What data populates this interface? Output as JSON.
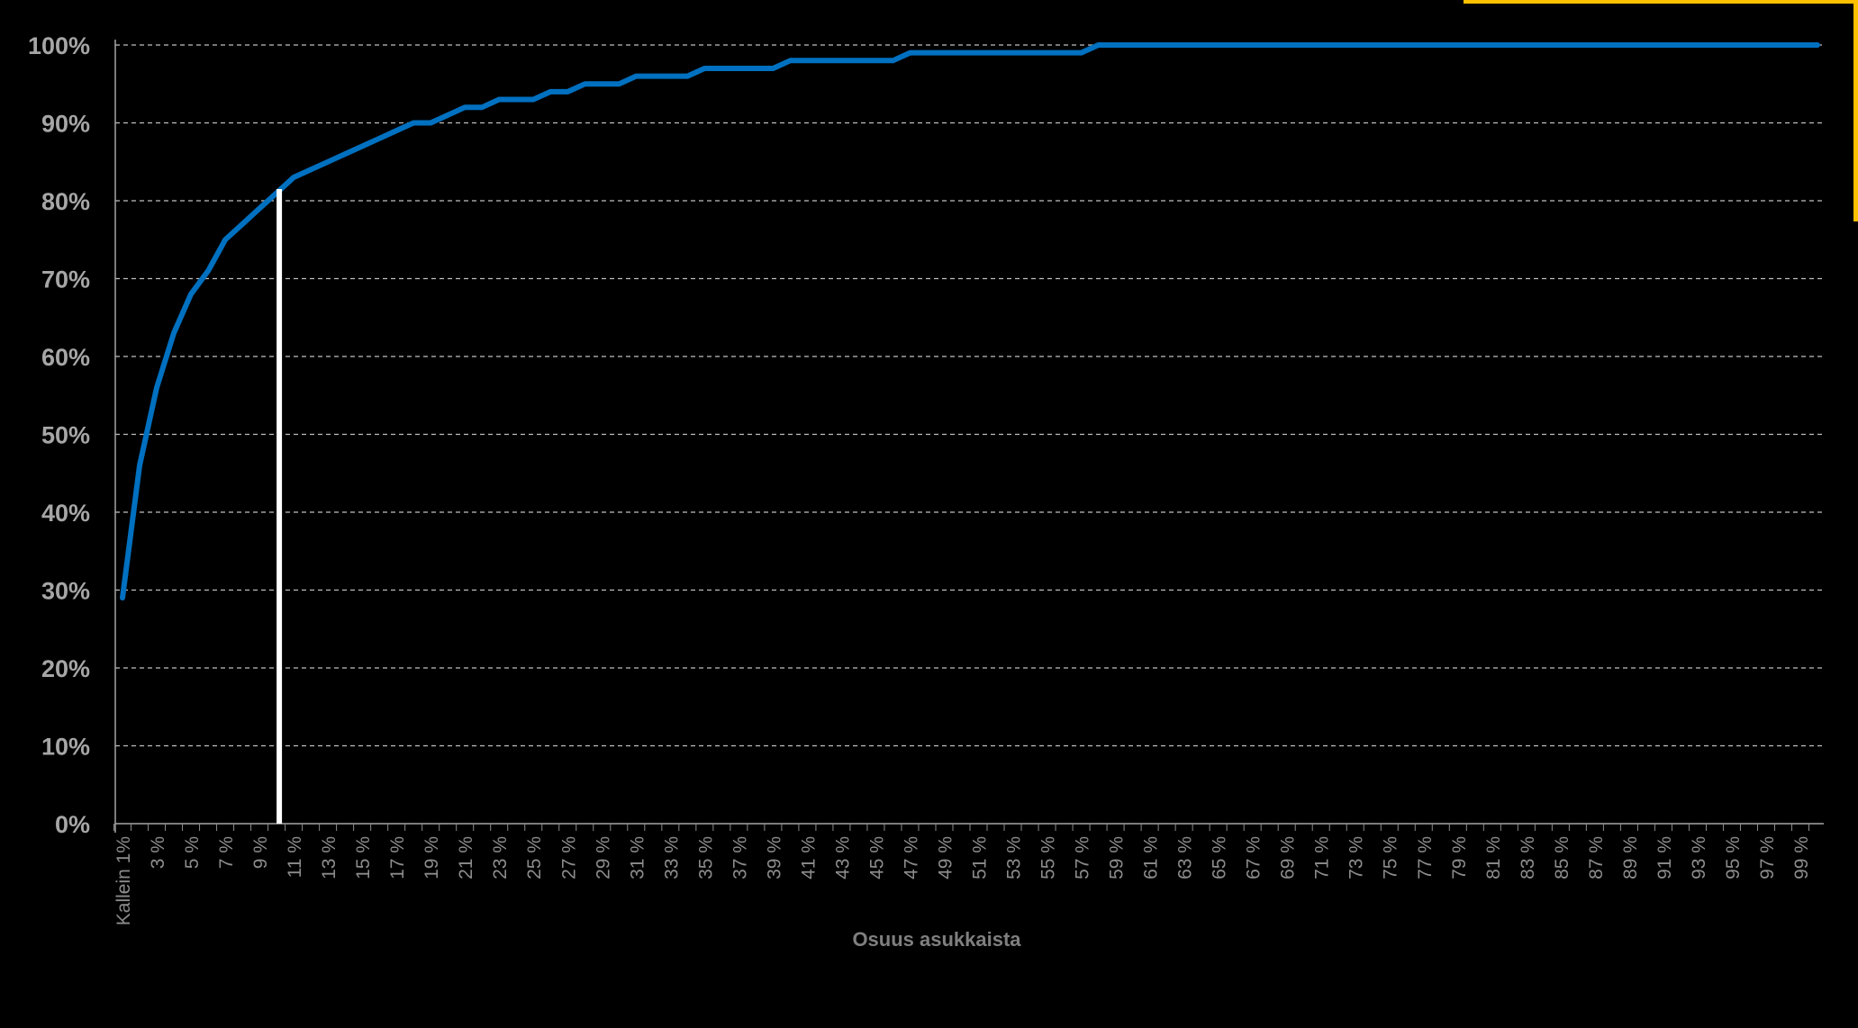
{
  "chart_data": {
    "type": "line",
    "title": "",
    "xlabel": "Osuus asukkaista",
    "ylabel": "",
    "x_tick_labels": [
      "Kallein 1%",
      "3 %",
      "5 %",
      "7 %",
      "9 %",
      "11 %",
      "13 %",
      "15 %",
      "17 %",
      "19 %",
      "21 %",
      "23 %",
      "25 %",
      "27 %",
      "29 %",
      "31 %",
      "33 %",
      "35 %",
      "37 %",
      "39 %",
      "41 %",
      "43 %",
      "45 %",
      "47 %",
      "49 %",
      "51 %",
      "53 %",
      "55 %",
      "57 %",
      "59 %",
      "61 %",
      "63 %",
      "65 %",
      "67 %",
      "69 %",
      "71 %",
      "73 %",
      "75 %",
      "77 %",
      "79 %",
      "81 %",
      "83 %",
      "85 %",
      "87 %",
      "89 %",
      "91 %",
      "93 %",
      "95 %",
      "97 %",
      "99 %"
    ],
    "y_tick_labels": [
      "0%",
      "10%",
      "20%",
      "30%",
      "40%",
      "50%",
      "60%",
      "70%",
      "80%",
      "90%",
      "100%"
    ],
    "ylim": [
      0,
      100
    ],
    "xlim": [
      1,
      100
    ],
    "grid": "horizontal-dashed",
    "legend": "none",
    "series": [
      {
        "x": [
          1,
          2,
          3,
          4,
          5,
          6,
          7,
          8,
          9,
          10,
          11,
          12,
          13,
          14,
          15,
          16,
          17,
          18,
          19,
          20,
          21,
          22,
          23,
          24,
          25,
          26,
          27,
          28,
          29,
          30,
          31,
          32,
          33,
          34,
          35,
          36,
          37,
          38,
          39,
          40,
          41,
          42,
          43,
          44,
          45,
          46,
          47,
          48,
          49,
          50,
          51,
          52,
          53,
          54,
          55,
          56,
          57,
          58,
          59,
          60,
          61,
          62,
          63,
          64,
          65,
          66,
          67,
          68,
          69,
          70,
          71,
          72,
          73,
          74,
          75,
          76,
          77,
          78,
          79,
          80,
          81,
          82,
          83,
          84,
          85,
          86,
          87,
          88,
          89,
          90,
          91,
          92,
          93,
          94,
          95,
          96,
          97,
          98,
          99,
          100
        ],
        "values": [
          29,
          46,
          56,
          63,
          68,
          71,
          75,
          77,
          79,
          81,
          83,
          84,
          85,
          86,
          87,
          88,
          89,
          90,
          90,
          91,
          92,
          92,
          93,
          93,
          93,
          94,
          94,
          95,
          95,
          95,
          96,
          96,
          96,
          96,
          97,
          97,
          97,
          97,
          97,
          98,
          98,
          98,
          98,
          98,
          98,
          98,
          99,
          99,
          99,
          99,
          99,
          99,
          99,
          99,
          99,
          99,
          99,
          100,
          100,
          100,
          100,
          100,
          100,
          100,
          100,
          100,
          100,
          100,
          100,
          100,
          100,
          100,
          100,
          100,
          100,
          100,
          100,
          100,
          100,
          100,
          100,
          100,
          100,
          100,
          100,
          100,
          100,
          100,
          100,
          100,
          100,
          100,
          100,
          100,
          100,
          100,
          100,
          100,
          100,
          100
        ]
      }
    ],
    "reference_line_x": 10,
    "colors": {
      "line": "#0070c0",
      "reference_line": "#ffffff",
      "grid": "#bfbfbf",
      "accent": "#ffc000"
    }
  }
}
